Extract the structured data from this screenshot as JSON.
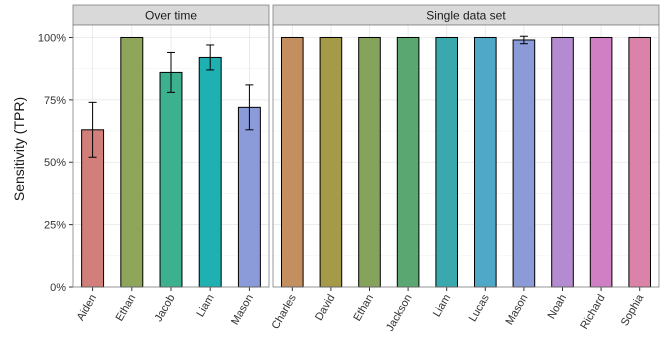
{
  "chart_data": {
    "type": "bar",
    "ylabel": "Sensitivity (TPR)",
    "xlabel": "",
    "ylim": [
      0,
      1.05
    ],
    "yticks": [
      0,
      0.25,
      0.5,
      0.75,
      1.0
    ],
    "ytick_labels": [
      "0%",
      "25%",
      "50%",
      "75%",
      "100%"
    ],
    "grid": true,
    "panels": [
      {
        "strip_label": "Over time",
        "categories": [
          "Aiden",
          "Ethan",
          "Jacob",
          "Liam",
          "Mason"
        ],
        "values": [
          0.63,
          1.0,
          0.86,
          0.92,
          0.72
        ],
        "error_low": [
          0.52,
          1.0,
          0.78,
          0.87,
          0.63
        ],
        "error_high": [
          0.74,
          1.0,
          0.94,
          0.97,
          0.81
        ],
        "colors": [
          "#d27e7a",
          "#8fa65a",
          "#3cb08f",
          "#1fb0b2",
          "#8b9ad8"
        ]
      },
      {
        "strip_label": "Single data set",
        "categories": [
          "Charles",
          "David",
          "Ethan",
          "Jackson",
          "Liam",
          "Lucas",
          "Mason",
          "Noah",
          "Richard",
          "Sophia"
        ],
        "values": [
          1.0,
          1.0,
          1.0,
          1.0,
          1.0,
          1.0,
          0.99,
          1.0,
          1.0,
          1.0
        ],
        "error_low": [
          1.0,
          1.0,
          1.0,
          1.0,
          1.0,
          1.0,
          0.975,
          1.0,
          1.0,
          1.0
        ],
        "error_high": [
          1.0,
          1.0,
          1.0,
          1.0,
          1.0,
          1.0,
          1.005,
          1.0,
          1.0,
          1.0
        ],
        "colors": [
          "#c38f5f",
          "#a49a47",
          "#86a35b",
          "#5aa772",
          "#3aa9ae",
          "#4fa8c8",
          "#8a9bd7",
          "#b48ad0",
          "#d07fc4",
          "#da82a8"
        ]
      }
    ]
  }
}
